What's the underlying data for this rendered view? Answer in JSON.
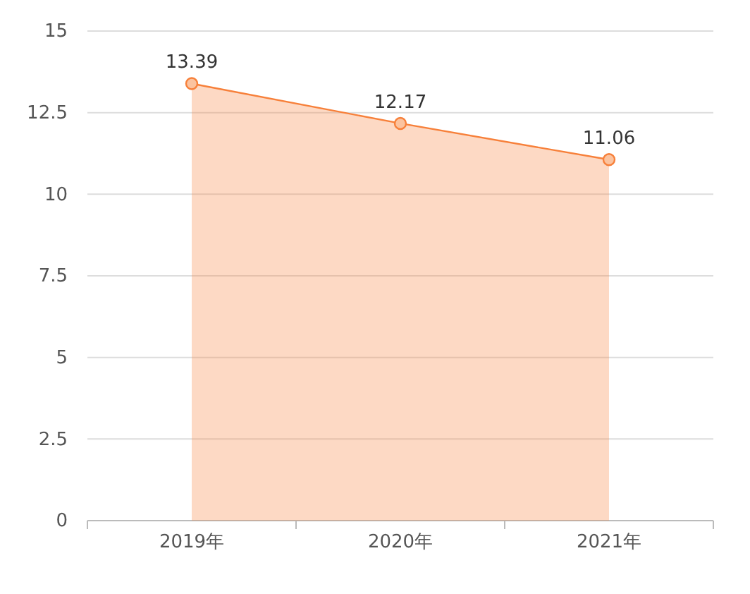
{
  "chart_data": {
    "type": "area",
    "categories": [
      "2019年",
      "2020年",
      "2021年"
    ],
    "series": [
      {
        "color": "#f7803a",
        "values": [
          13.39,
          12.17,
          11.06
        ]
      }
    ],
    "ylim": [
      0,
      15
    ],
    "yticks": [
      0,
      {
        "value": 2.5,
        "label": "2.5"
      },
      5,
      {
        "value": 7.5,
        "label": "7.5"
      },
      10,
      {
        "value": 12.5,
        "label": "12.5"
      },
      15
    ],
    "grid": "y",
    "marker": "circle",
    "data_labels": true
  }
}
